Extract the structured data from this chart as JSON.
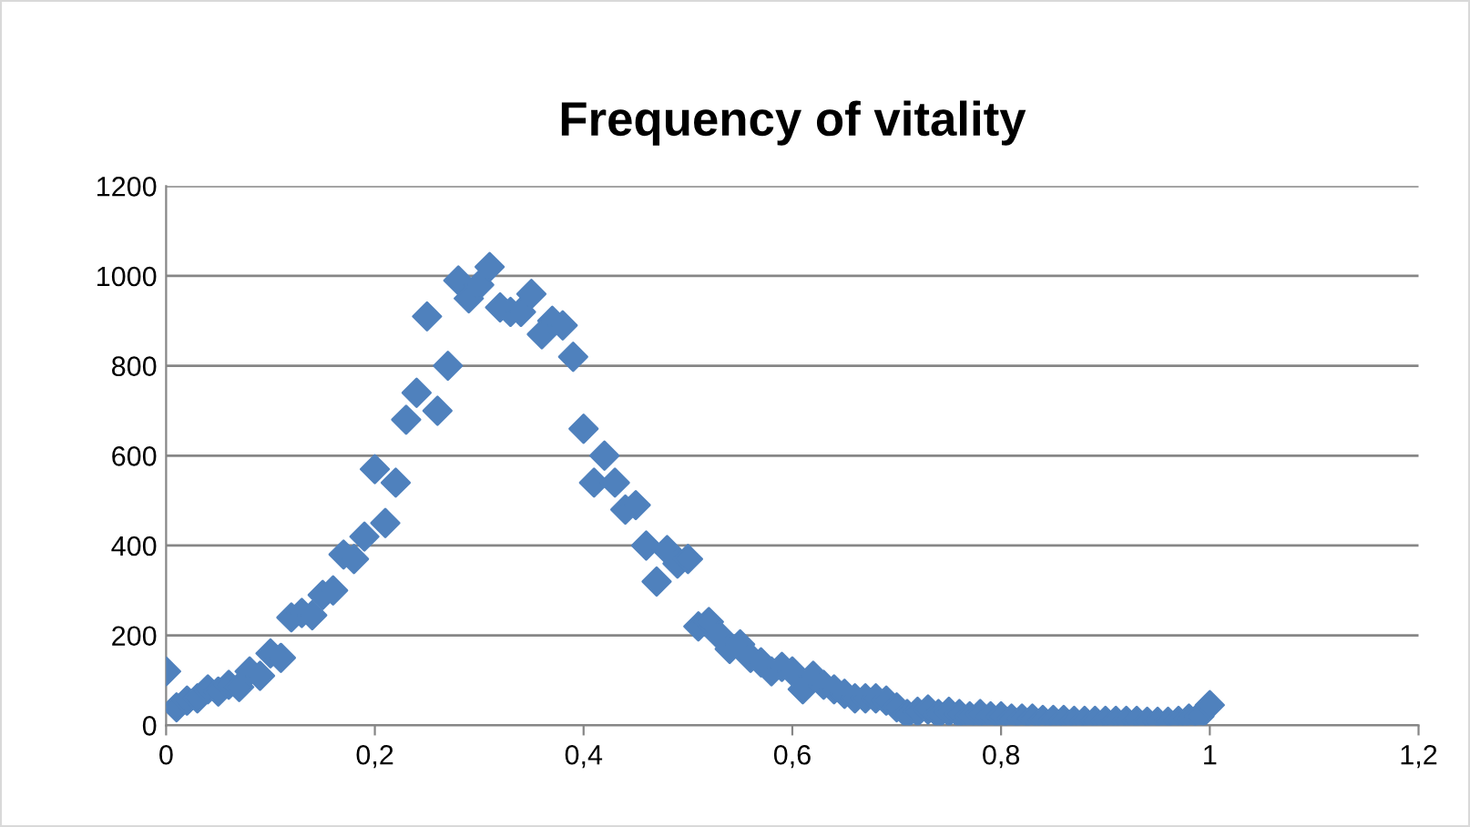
{
  "chart_data": {
    "type": "scatter",
    "title": "Frequency of vitality",
    "x": [
      0,
      0.01,
      0.02,
      0.03,
      0.04,
      0.05,
      0.06,
      0.07,
      0.08,
      0.09,
      0.1,
      0.11,
      0.12,
      0.13,
      0.14,
      0.15,
      0.16,
      0.17,
      0.18,
      0.19,
      0.2,
      0.21,
      0.22,
      0.23,
      0.24,
      0.25,
      0.26,
      0.27,
      0.28,
      0.29,
      0.3,
      0.31,
      0.32,
      0.33,
      0.34,
      0.35,
      0.36,
      0.37,
      0.38,
      0.39,
      0.4,
      0.41,
      0.42,
      0.43,
      0.44,
      0.45,
      0.46,
      0.47,
      0.48,
      0.49,
      0.5,
      0.51,
      0.52,
      0.53,
      0.54,
      0.55,
      0.56,
      0.57,
      0.58,
      0.59,
      0.6,
      0.61,
      0.62,
      0.63,
      0.64,
      0.65,
      0.66,
      0.67,
      0.68,
      0.69,
      0.7,
      0.71,
      0.72,
      0.73,
      0.74,
      0.75,
      0.76,
      0.77,
      0.78,
      0.79,
      0.8,
      0.81,
      0.82,
      0.83,
      0.84,
      0.85,
      0.86,
      0.87,
      0.88,
      0.89,
      0.9,
      0.91,
      0.92,
      0.93,
      0.94,
      0.95,
      0.96,
      0.97,
      0.98,
      0.99,
      1
    ],
    "series": [
      {
        "color": "#4f81bd",
        "values": [
          120,
          40,
          55,
          60,
          80,
          75,
          90,
          85,
          120,
          110,
          160,
          150,
          240,
          250,
          245,
          290,
          300,
          380,
          370,
          420,
          570,
          450,
          540,
          680,
          740,
          910,
          700,
          800,
          990,
          950,
          980,
          1020,
          930,
          920,
          920,
          960,
          870,
          900,
          890,
          820,
          660,
          540,
          600,
          540,
          480,
          490,
          400,
          320,
          390,
          360,
          370,
          220,
          230,
          200,
          170,
          180,
          150,
          140,
          120,
          130,
          120,
          80,
          110,
          90,
          80,
          70,
          60,
          60,
          60,
          55,
          40,
          25,
          30,
          35,
          25,
          30,
          25,
          20,
          25,
          20,
          20,
          15,
          15,
          15,
          12,
          12,
          12,
          10,
          10,
          10,
          10,
          10,
          10,
          10,
          8,
          8,
          8,
          10,
          15,
          20,
          45
        ]
      }
    ],
    "xlim": [
      0,
      1.2
    ],
    "xticks": [
      0,
      {
        "value": 0.2,
        "label": "0,2"
      },
      {
        "value": 0.4,
        "label": "0,4"
      },
      {
        "value": 0.6,
        "label": "0,6"
      },
      {
        "value": 0.8,
        "label": "0,8"
      },
      1,
      {
        "value": 1.2,
        "label": "1,2"
      }
    ],
    "ylim": [
      0,
      1200
    ],
    "yticks": [
      0,
      200,
      400,
      600,
      800,
      1000,
      1200
    ],
    "grid": "y",
    "marker": "diamond",
    "legend": false
  }
}
